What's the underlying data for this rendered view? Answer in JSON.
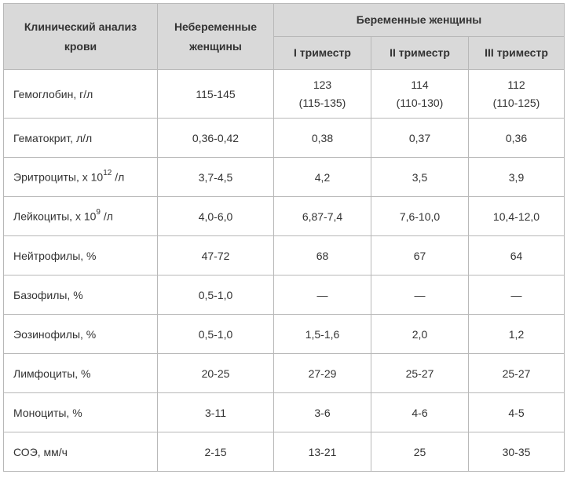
{
  "header": {
    "col1": "Клинический анализ крови",
    "col2": "Небеременные женщины",
    "group": "Беременные женщины",
    "sub1": "I триместр",
    "sub2": "II триместр",
    "sub3": "III триместр"
  },
  "rows": {
    "r0": {
      "param": "Гемоглобин, г/л",
      "nonpreg": "115-145",
      "t1a": "123",
      "t1b": "(115-135)",
      "t2a": "114",
      "t2b": "(110-130)",
      "t3a": "112",
      "t3b": "(110-125)"
    },
    "r1": {
      "param": "Гематокрит, л/л",
      "nonpreg": "0,36-0,42",
      "t1": "0,38",
      "t2": "0,37",
      "t3": "0,36"
    },
    "r2": {
      "param_pre": "Эритроциты, х 10",
      "param_sup": "12",
      "param_post": " /л",
      "nonpreg": "3,7-4,5",
      "t1": "4,2",
      "t2": "3,5",
      "t3": "3,9"
    },
    "r3": {
      "param_pre": "Лейкоциты, х 10",
      "param_sup": "9",
      "param_post": " /л",
      "nonpreg": "4,0-6,0",
      "t1": "6,87-7,4",
      "t2": "7,6-10,0",
      "t3": "10,4-12,0"
    },
    "r4": {
      "param": "Нейтрофилы, %",
      "nonpreg": "47-72",
      "t1": "68",
      "t2": "67",
      "t3": "64"
    },
    "r5": {
      "param": "Базофилы, %",
      "nonpreg": "0,5-1,0",
      "t1": "—",
      "t2": "—",
      "t3": "—"
    },
    "r6": {
      "param": "Эозинофилы, %",
      "nonpreg": "0,5-1,0",
      "t1": "1,5-1,6",
      "t2": "2,0",
      "t3": "1,2"
    },
    "r7": {
      "param": "Лимфоциты, %",
      "nonpreg": "20-25",
      "t1": "27-29",
      "t2": "25-27",
      "t3": "25-27"
    },
    "r8": {
      "param": "Моноциты, %",
      "nonpreg": "3-11",
      "t1": "3-6",
      "t2": "4-6",
      "t3": "4-5"
    },
    "r9": {
      "param": "СОЭ, мм/ч",
      "nonpreg": "2-15",
      "t1": "13-21",
      "t2": "25",
      "t3": "30-35"
    }
  }
}
